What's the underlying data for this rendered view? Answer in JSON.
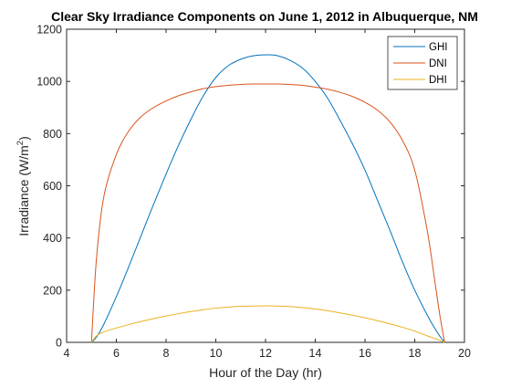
{
  "chart_data": {
    "type": "line",
    "title": "Clear Sky Irradiance Components on June 1, 2012 in Albuquerque, NM",
    "xlabel": "Hour of the Day (hr)",
    "ylabel": "Irradiance (W/m",
    "ylabel_sup": "2",
    "ylabel_tail": ")",
    "xlim": [
      4,
      20
    ],
    "ylim": [
      0,
      1200
    ],
    "xticks": [
      4,
      6,
      8,
      10,
      12,
      14,
      16,
      18,
      20
    ],
    "yticks": [
      0,
      200,
      400,
      600,
      800,
      1000,
      1200
    ],
    "grid": false,
    "legend_position": "top-right",
    "x": [
      5.0,
      5.2,
      5.5,
      6.0,
      6.5,
      7.0,
      7.5,
      8.0,
      8.5,
      9.0,
      9.5,
      10.0,
      10.5,
      11.0,
      11.5,
      12.1,
      12.5,
      13.0,
      13.5,
      14.0,
      14.5,
      15.0,
      15.5,
      16.0,
      16.5,
      17.0,
      17.5,
      18.0,
      18.5,
      18.8,
      19.0,
      19.2
    ],
    "series": [
      {
        "name": "GHI",
        "color": "#0072BD",
        "values": [
          0,
          20,
          70,
          175,
          290,
          410,
          530,
          645,
          755,
          855,
          945,
          1015,
          1060,
          1085,
          1098,
          1102,
          1098,
          1080,
          1050,
          1000,
          935,
          850,
          760,
          660,
          545,
          430,
          310,
          200,
          105,
          55,
          25,
          0
        ]
      },
      {
        "name": "DNI",
        "color": "#D95319",
        "values": [
          0,
          320,
          560,
          720,
          810,
          865,
          900,
          925,
          945,
          960,
          972,
          980,
          985,
          988,
          990,
          990,
          990,
          988,
          985,
          978,
          970,
          958,
          942,
          920,
          890,
          845,
          775,
          660,
          430,
          240,
          110,
          0
        ]
      },
      {
        "name": "DHI",
        "color": "#EDB120",
        "values": [
          0,
          25,
          40,
          55,
          68,
          80,
          91,
          101,
          110,
          118,
          125,
          131,
          135,
          138,
          139,
          140,
          139,
          137,
          133,
          128,
          121,
          113,
          104,
          94,
          83,
          71,
          58,
          43,
          25,
          15,
          8,
          0
        ]
      }
    ]
  }
}
